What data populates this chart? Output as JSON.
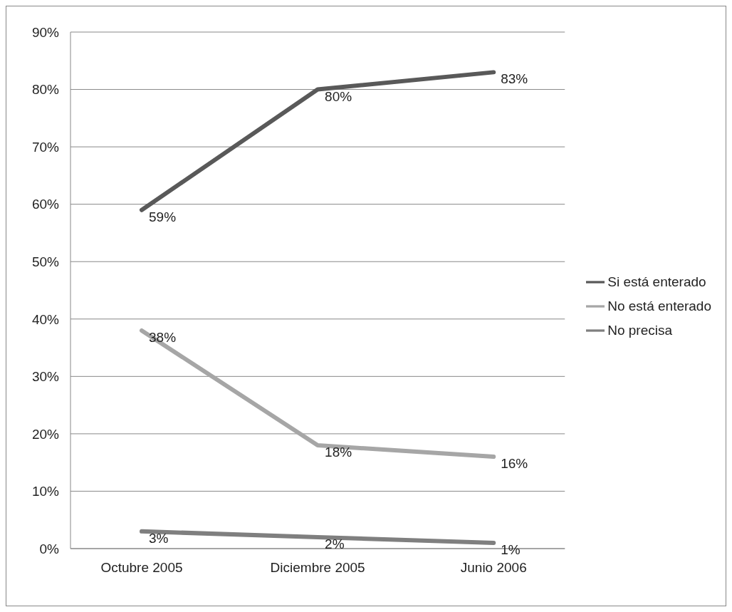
{
  "chart_data": {
    "type": "line",
    "categories": [
      "Octubre 2005",
      "Diciembre 2005",
      "Junio 2006"
    ],
    "series": [
      {
        "name": "Si está enterado",
        "color": "#595959",
        "values": [
          59,
          80,
          83
        ],
        "value_labels": [
          "59%",
          "80%",
          "83%"
        ]
      },
      {
        "name": "No está enterado",
        "color": "#a6a6a6",
        "values": [
          38,
          18,
          16
        ],
        "value_labels": [
          "38%",
          "18%",
          "16%"
        ]
      },
      {
        "name": "No precisa",
        "color": "#7f7f7f",
        "values": [
          3,
          2,
          1
        ],
        "value_labels": [
          "3%",
          "2%",
          "1%"
        ]
      }
    ],
    "ylim": [
      0,
      90
    ],
    "yticks": [
      {
        "value": 0,
        "label": "0%"
      },
      {
        "value": 10,
        "label": "10%"
      },
      {
        "value": 20,
        "label": "20%"
      },
      {
        "value": 30,
        "label": "30%"
      },
      {
        "value": 40,
        "label": "40%"
      },
      {
        "value": 50,
        "label": "50%"
      },
      {
        "value": 60,
        "label": "60%"
      },
      {
        "value": 70,
        "label": "70%"
      },
      {
        "value": 80,
        "label": "80%"
      },
      {
        "value": 90,
        "label": "90%"
      }
    ],
    "grid": "y",
    "legend": "right",
    "marker": "none",
    "line_style": "solid"
  }
}
